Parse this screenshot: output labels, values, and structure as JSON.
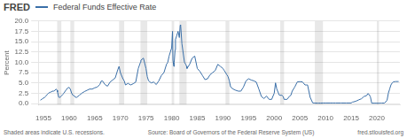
{
  "chart_data": {
    "type": "line",
    "title": "Federal Funds Effective Rate",
    "ylabel": "Percent",
    "annotations": [
      "FRED",
      "Shaded areas indicate U.S. recessions.",
      "Source: Board of Governors of the Federal Reserve System (US)",
      "fred.stlouisfed.org"
    ],
    "color": "#3a6fa8",
    "grid": "y",
    "xlim": [
      1954.0,
      2024.5
    ],
    "xticks": [
      1955,
      1960,
      1965,
      1970,
      1975,
      1980,
      1985,
      1990,
      1995,
      2000,
      2005,
      2010,
      2015,
      2020
    ],
    "ylim": [
      -0.3,
      20.0
    ],
    "yticks": [
      {
        "value": 0,
        "label": "0.0"
      },
      2.5,
      {
        "value": 5,
        "label": "5.0"
      },
      7.5,
      {
        "value": 10,
        "label": "10.0"
      },
      12.5,
      {
        "value": 15,
        "label": "15.0"
      },
      17.5,
      {
        "value": 20,
        "label": "20.0"
      }
    ],
    "recessions": [
      [
        1957.67,
        1958.5
      ],
      [
        1960.25,
        1961.0
      ],
      [
        1969.75,
        1970.75
      ],
      [
        1973.92,
        1975.25
      ],
      [
        1980.0,
        1980.5
      ],
      [
        1981.5,
        1982.92
      ],
      [
        1990.5,
        1991.25
      ],
      [
        2001.17,
        2001.92
      ],
      [
        2007.92,
        2009.5
      ],
      [
        2020.0,
        2020.42
      ]
    ],
    "x": [
      1954.42,
      1954.75,
      1955.0,
      1955.25,
      1955.5,
      1955.75,
      1956.0,
      1956.25,
      1956.5,
      1956.75,
      1957.0,
      1957.25,
      1957.5,
      1957.67,
      1957.75,
      1958.0,
      1958.25,
      1958.5,
      1958.75,
      1959.0,
      1959.25,
      1959.5,
      1959.75,
      1960.0,
      1960.25,
      1960.5,
      1960.75,
      1961.0,
      1961.25,
      1961.5,
      1962.0,
      1962.5,
      1963.0,
      1963.5,
      1964.0,
      1964.5,
      1965.0,
      1965.5,
      1966.0,
      1966.25,
      1966.5,
      1967.0,
      1967.5,
      1968.0,
      1968.5,
      1969.0,
      1969.5,
      1969.75,
      1970.0,
      1970.5,
      1970.75,
      1971.0,
      1971.5,
      1972.0,
      1972.5,
      1973.0,
      1973.5,
      1973.92,
      1974.0,
      1974.5,
      1975.0,
      1975.25,
      1975.5,
      1976.0,
      1976.5,
      1977.0,
      1977.5,
      1978.0,
      1978.5,
      1979.0,
      1979.25,
      1979.5,
      1979.75,
      1980.0,
      1980.17,
      1980.25,
      1980.42,
      1980.5,
      1980.67,
      1980.75,
      1981.0,
      1981.25,
      1981.5,
      1981.67,
      1981.75,
      1982.0,
      1982.5,
      1982.75,
      1982.92,
      1983.0,
      1983.5,
      1984.0,
      1984.5,
      1985.0,
      1985.5,
      1986.0,
      1986.5,
      1987.0,
      1987.5,
      1988.0,
      1988.5,
      1989.0,
      1989.5,
      1990.0,
      1990.25,
      1990.5,
      1990.75,
      1991.0,
      1991.25,
      1991.5,
      1992.0,
      1992.5,
      1993.0,
      1993.5,
      1994.0,
      1994.5,
      1995.0,
      1995.5,
      1996.0,
      1996.5,
      1997.0,
      1997.5,
      1998.0,
      1998.5,
      1999.0,
      1999.5,
      2000.0,
      2000.25,
      2000.5,
      2001.0,
      2001.17,
      2001.5,
      2001.75,
      2001.92,
      2002.0,
      2002.5,
      2003.0,
      2003.25,
      2003.5,
      2004.0,
      2004.5,
      2005.0,
      2005.5,
      2006.0,
      2006.25,
      2006.5,
      2007.0,
      2007.5,
      2007.75,
      2007.92,
      2008.0,
      2008.25,
      2008.5,
      2008.75,
      2009.0,
      2009.5,
      2010.0,
      2010.5,
      2011.0,
      2011.5,
      2012.0,
      2013.0,
      2014.0,
      2015.0,
      2015.25,
      2015.5,
      2016.0,
      2016.5,
      2017.0,
      2017.5,
      2018.0,
      2018.25,
      2018.5,
      2018.75,
      2019.0,
      2019.5,
      2020.0,
      2020.17,
      2020.42,
      2020.75,
      2021.0,
      2021.5,
      2022.0,
      2022.25,
      2022.5,
      2022.75,
      2023.0,
      2023.25,
      2023.5,
      2023.75,
      2024.0,
      2024.25
    ],
    "values": [
      0.8,
      1.1,
      1.3,
      1.5,
      1.8,
      2.2,
      2.5,
      2.7,
      2.8,
      3.0,
      3.0,
      3.2,
      3.5,
      3.2,
      2.8,
      1.5,
      1.5,
      1.8,
      2.2,
      2.5,
      3.0,
      3.4,
      3.8,
      3.9,
      3.5,
      2.5,
      2.0,
      1.9,
      1.5,
      1.5,
      2.0,
      2.5,
      2.9,
      3.2,
      3.5,
      3.5,
      3.8,
      4.0,
      4.6,
      5.4,
      5.5,
      4.6,
      4.2,
      5.2,
      5.7,
      6.2,
      8.2,
      9.0,
      7.5,
      6.0,
      5.5,
      4.5,
      4.9,
      4.5,
      4.8,
      5.2,
      8.5,
      10.0,
      10.5,
      11.0,
      8.5,
      6.5,
      5.5,
      5.0,
      5.2,
      4.6,
      5.5,
      6.8,
      7.5,
      9.5,
      10.0,
      11.5,
      12.5,
      13.5,
      17.5,
      10.5,
      9.0,
      10.0,
      13.0,
      15.5,
      16.5,
      17.5,
      16.0,
      19.0,
      19.1,
      14.5,
      10.0,
      9.5,
      9.0,
      8.5,
      9.5,
      11.0,
      11.5,
      8.5,
      7.8,
      6.8,
      5.8,
      6.0,
      7.0,
      7.5,
      8.0,
      9.5,
      9.0,
      8.5,
      8.0,
      7.5,
      7.0,
      6.5,
      5.5,
      4.0,
      3.5,
      3.2,
      3.0,
      3.0,
      4.0,
      5.5,
      6.0,
      5.7,
      5.5,
      5.2,
      3.5,
      1.7,
      1.2,
      1.8,
      1.0,
      1.0,
      2.5,
      5.0,
      3.5,
      2.0,
      2.0,
      2.0,
      1.7,
      1.0,
      1.0,
      1.0,
      1.8,
      2.0,
      3.0,
      4.0,
      5.25,
      5.3,
      5.25,
      4.5,
      4.5,
      4.5,
      1.5,
      0.15,
      0.12,
      0.12,
      0.12,
      0.1,
      0.1,
      0.1,
      0.1,
      0.12,
      0.12,
      0.12,
      0.12,
      0.12,
      0.12,
      0.12,
      0.12,
      0.12,
      0.35,
      0.4,
      0.6,
      0.9,
      1.15,
      1.7,
      1.9,
      2.4,
      2.2,
      1.6,
      0.08,
      0.08,
      0.08,
      0.08,
      0.08,
      0.1,
      0.1,
      0.1,
      0.8,
      2.5,
      3.5,
      4.5,
      5.0,
      5.25,
      5.3,
      5.33,
      5.33,
      5.33
    ]
  }
}
